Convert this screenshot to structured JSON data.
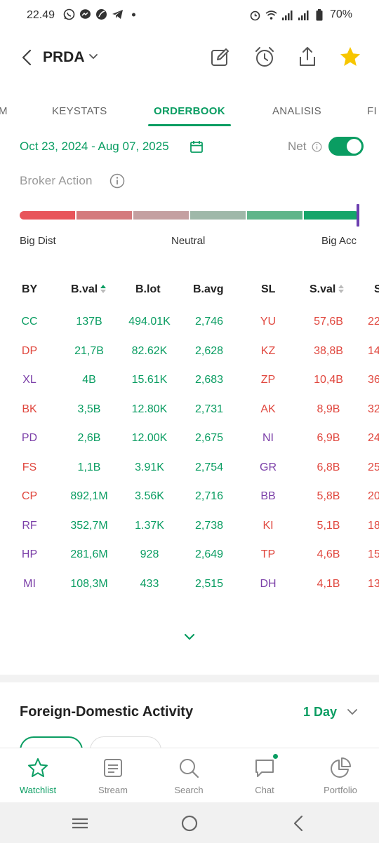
{
  "status_bar": {
    "time": "22.49",
    "battery": "70%"
  },
  "header": {
    "ticker": "PRDA"
  },
  "tabs": [
    {
      "label": "M"
    },
    {
      "label": "KEYSTATS"
    },
    {
      "label": "ORDERBOOK"
    },
    {
      "label": "ANALISIS"
    },
    {
      "label": "FI"
    }
  ],
  "filters": {
    "date_range": "Oct 23, 2024 - Aug 07, 2025",
    "net_label": "Net",
    "net_enabled": true
  },
  "broker_action": {
    "title": "Broker Action",
    "left_label": "Big Dist",
    "mid_label": "Neutral",
    "right_label": "Big Acc",
    "level": 1.0
  },
  "orderbook": {
    "headers": [
      "BY",
      "B.val",
      "B.lot",
      "B.avg",
      "SL",
      "S.val",
      "S"
    ],
    "rows": [
      {
        "by": "CC",
        "by_color": "green",
        "bval": "137B",
        "blot": "494.01K",
        "bavg": "2,746",
        "sl": "YU",
        "sl_color": "red",
        "sval": "57,6B",
        "s": "22"
      },
      {
        "by": "DP",
        "by_color": "red",
        "bval": "21,7B",
        "blot": "82.62K",
        "bavg": "2,628",
        "sl": "KZ",
        "sl_color": "red",
        "sval": "38,8B",
        "s": "14("
      },
      {
        "by": "XL",
        "by_color": "purple",
        "bval": "4B",
        "blot": "15.61K",
        "bavg": "2,683",
        "sl": "ZP",
        "sl_color": "red",
        "sval": "10,4B",
        "s": "36"
      },
      {
        "by": "BK",
        "by_color": "red",
        "bval": "3,5B",
        "blot": "12.80K",
        "bavg": "2,731",
        "sl": "AK",
        "sl_color": "red",
        "sval": "8,9B",
        "s": "32"
      },
      {
        "by": "PD",
        "by_color": "purple",
        "bval": "2,6B",
        "blot": "12.00K",
        "bavg": "2,675",
        "sl": "NI",
        "sl_color": "purple",
        "sval": "6,9B",
        "s": "24"
      },
      {
        "by": "FS",
        "by_color": "red",
        "bval": "1,1B",
        "blot": "3.91K",
        "bavg": "2,754",
        "sl": "GR",
        "sl_color": "purple",
        "sval": "6,8B",
        "s": "25"
      },
      {
        "by": "CP",
        "by_color": "red",
        "bval": "892,1M",
        "blot": "3.56K",
        "bavg": "2,716",
        "sl": "BB",
        "sl_color": "purple",
        "sval": "5,8B",
        "s": "20"
      },
      {
        "by": "RF",
        "by_color": "purple",
        "bval": "352,7M",
        "blot": "1.37K",
        "bavg": "2,738",
        "sl": "KI",
        "sl_color": "red",
        "sval": "5,1B",
        "s": "18"
      },
      {
        "by": "HP",
        "by_color": "purple",
        "bval": "281,6M",
        "blot": "928",
        "bavg": "2,649",
        "sl": "TP",
        "sl_color": "red",
        "sval": "4,6B",
        "s": "15"
      },
      {
        "by": "MI",
        "by_color": "purple",
        "bval": "108,3M",
        "blot": "433",
        "bavg": "2,515",
        "sl": "DH",
        "sl_color": "purple",
        "sval": "4,1B",
        "s": "13"
      }
    ]
  },
  "foreign_domestic": {
    "title": "Foreign-Domestic Activity",
    "period": "1 Day"
  },
  "bottom_nav": [
    {
      "label": "Watchlist",
      "icon": "star-icon",
      "active": true
    },
    {
      "label": "Stream",
      "icon": "stream-icon",
      "active": false
    },
    {
      "label": "Search",
      "icon": "search-icon",
      "active": false
    },
    {
      "label": "Chat",
      "icon": "chat-icon",
      "active": false
    },
    {
      "label": "Portfolio",
      "icon": "pie-chart-icon",
      "active": false
    }
  ],
  "colors": {
    "accent": "#0a9d62",
    "sell": "#e0473e",
    "neutral_broker": "#7b3fa8",
    "star": "#f7c600"
  }
}
